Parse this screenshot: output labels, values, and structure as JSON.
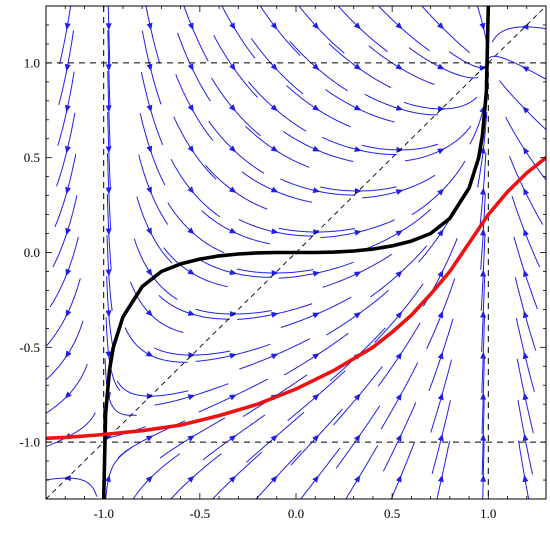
{
  "chart_data": {
    "type": "line",
    "title": "",
    "xlabel": "",
    "ylabel": "",
    "xlim": [
      -1.3,
      1.3
    ],
    "ylim": [
      -1.3,
      1.3
    ],
    "grid": false,
    "x_ticks": [
      "-1.0",
      "-0.5",
      "0.0",
      "0.5",
      "1.0"
    ],
    "y_ticks": [
      "1.0",
      "0.5",
      "0.0",
      "-0.5",
      "-1.0"
    ],
    "reference_lines": {
      "vertical_dashed_x": [
        -1.0,
        1.0
      ],
      "horizontal_dashed_y": [
        -1.0,
        1.0
      ],
      "diagonal_dashed": "y = x"
    },
    "stream_field": {
      "description_type": "streamplot",
      "color": "#1f1fe6",
      "field": "dx = 1 - x^2, dy = x - y"
    },
    "series": [
      {
        "color": "#000000",
        "style": "solid-thick",
        "x": [
          -1.0,
          -0.99,
          -0.97,
          -0.95,
          -0.9,
          -0.8,
          -0.7,
          -0.6,
          -0.5,
          -0.4,
          -0.3,
          -0.2,
          -0.1,
          0.0,
          0.1,
          0.2,
          0.3,
          0.4,
          0.5,
          0.6,
          0.7,
          0.8,
          0.9,
          0.95,
          0.97,
          0.99,
          1.0
        ],
        "y": [
          -1.3,
          -0.85,
          -0.62,
          -0.5,
          -0.34,
          -0.18,
          -0.1,
          -0.06,
          -0.035,
          -0.018,
          -0.008,
          -0.002,
          0.0,
          0.0,
          0.0,
          0.002,
          0.008,
          0.018,
          0.035,
          0.06,
          0.1,
          0.18,
          0.34,
          0.5,
          0.62,
          0.85,
          1.3
        ]
      },
      {
        "color": "#ee1111",
        "style": "solid-thick",
        "x": [
          -1.3,
          -1.2,
          -1.1,
          -1.0,
          -0.8,
          -0.6,
          -0.4,
          -0.2,
          0.0,
          0.2,
          0.4,
          0.5,
          0.6,
          0.7,
          0.8,
          0.9,
          1.0,
          1.1,
          1.2,
          1.3
        ],
        "y": [
          -0.98,
          -0.975,
          -0.968,
          -0.96,
          -0.94,
          -0.91,
          -0.86,
          -0.8,
          -0.72,
          -0.62,
          -0.5,
          -0.42,
          -0.33,
          -0.22,
          -0.1,
          0.05,
          0.2,
          0.32,
          0.42,
          0.5
        ]
      }
    ]
  }
}
